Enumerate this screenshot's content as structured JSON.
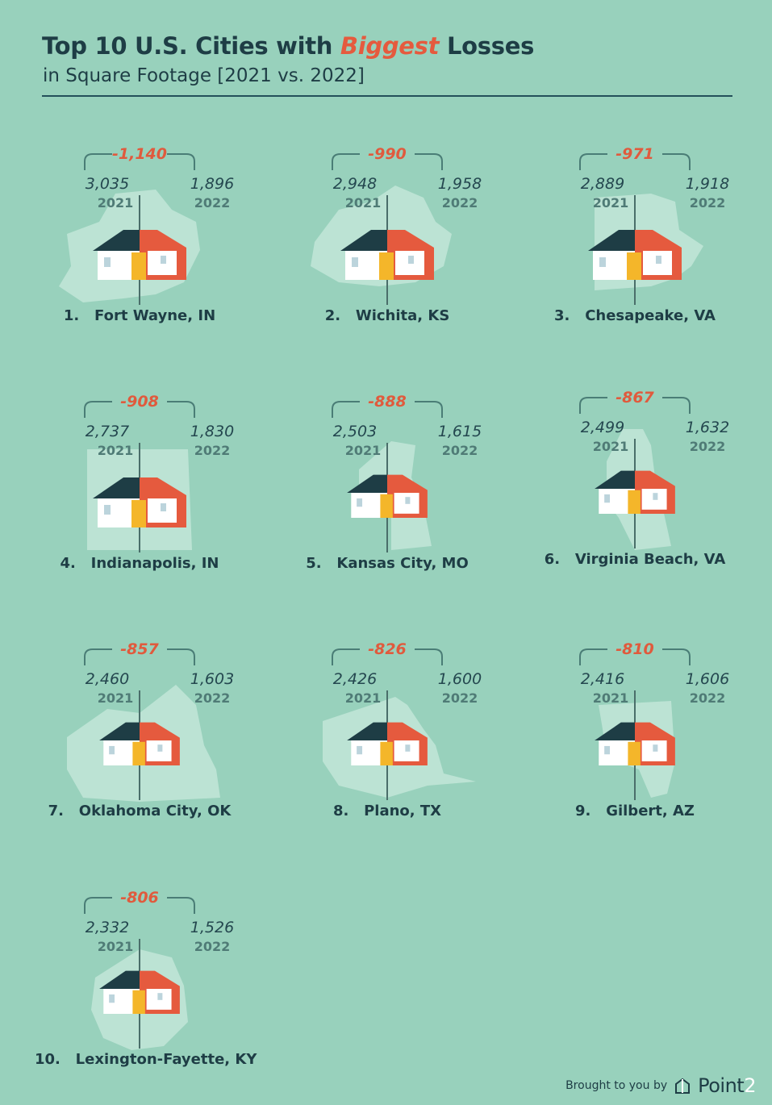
{
  "header": {
    "title_before": "Top 10 U.S. Cities with",
    "title_highlight": "Biggest",
    "title_after": "Losses",
    "subtitle": "in Square Footage [2021 vs. 2022]"
  },
  "chart_data": {
    "type": "table",
    "columns": [
      "rank",
      "city",
      "2021",
      "2022",
      "difference"
    ],
    "year_labels": [
      "2021",
      "2022"
    ],
    "cities": [
      {
        "rank": "1.",
        "city": "Fort Wayne, IN",
        "v2021": "3,035",
        "v2022": "1,896",
        "diff": "-1,140"
      },
      {
        "rank": "2.",
        "city": "Wichita, KS",
        "v2021": "2,948",
        "v2022": "1,958",
        "diff": "-990"
      },
      {
        "rank": "3.",
        "city": "Chesapeake, VA",
        "v2021": "2,889",
        "v2022": "1,918",
        "diff": "-971"
      },
      {
        "rank": "4.",
        "city": "Indianapolis, IN",
        "v2021": "2,737",
        "v2022": "1,830",
        "diff": "-908"
      },
      {
        "rank": "5.",
        "city": "Kansas City, MO",
        "v2021": "2,503",
        "v2022": "1,615",
        "diff": "-888"
      },
      {
        "rank": "6.",
        "city": "Virginia Beach, VA",
        "v2021": "2,499",
        "v2022": "1,632",
        "diff": "-867"
      },
      {
        "rank": "7.",
        "city": "Oklahoma City, OK",
        "v2021": "2,460",
        "v2022": "1,603",
        "diff": "-857"
      },
      {
        "rank": "8.",
        "city": "Plano, TX",
        "v2021": "2,426",
        "v2022": "1,600",
        "diff": "-826"
      },
      {
        "rank": "9.",
        "city": "Gilbert, AZ",
        "v2021": "2,416",
        "v2022": "1,606",
        "diff": "-810"
      },
      {
        "rank": "10.",
        "city": "Lexington-Fayette, KY",
        "v2021": "2,332",
        "v2022": "1,526",
        "diff": "-806"
      }
    ]
  },
  "footer": {
    "brought_by": "Brought to you by",
    "brand_main": "Point",
    "brand_suffix": "2",
    "logo_icon": "house-outline-icon"
  },
  "colors": {
    "background": "#98d1bc",
    "accent": "#e55a3e",
    "dark": "#1e3d45",
    "map": "#c2e6d8",
    "house_roof": "#1e3d45",
    "house_orange": "#e55a3e",
    "door": "#f4b62a"
  }
}
